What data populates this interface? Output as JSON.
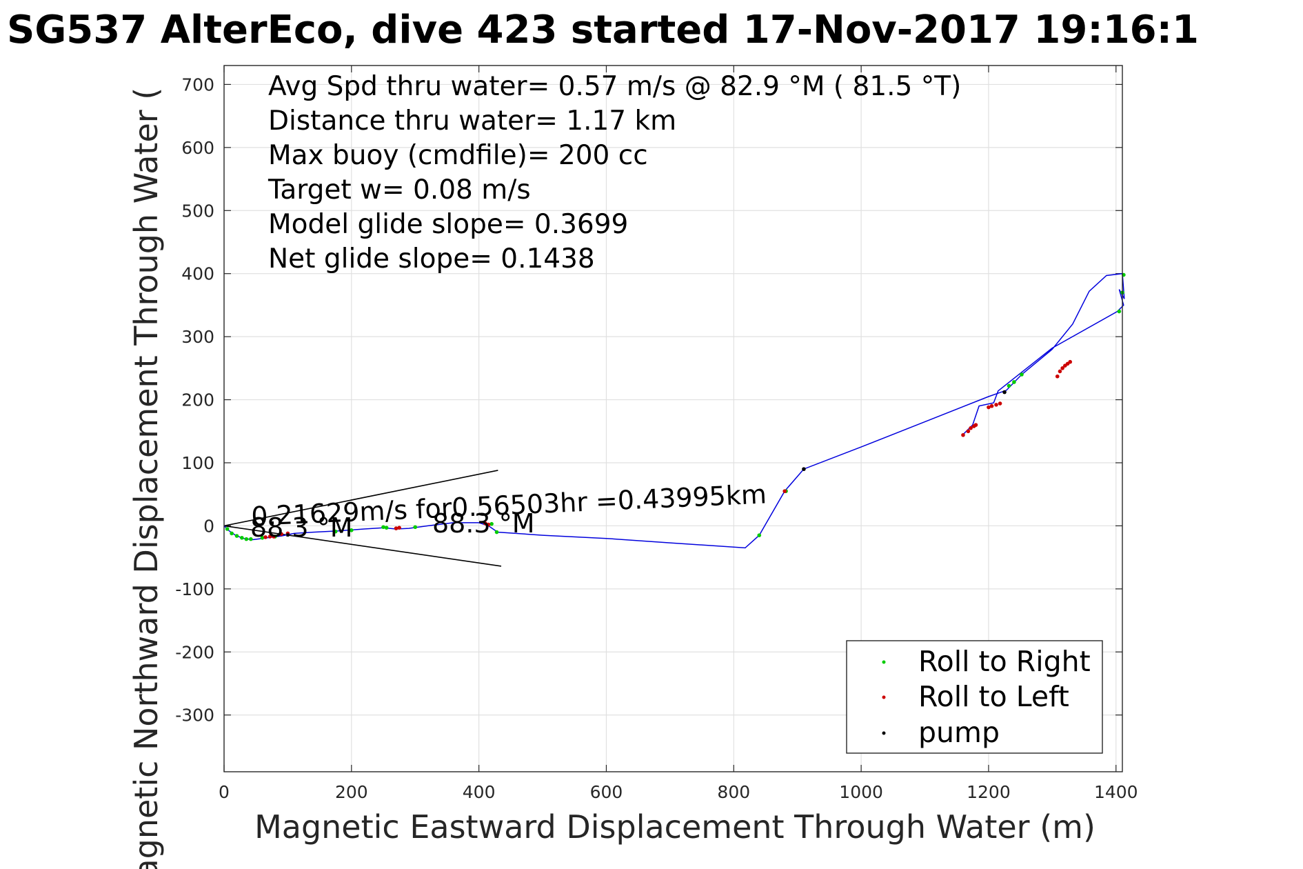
{
  "chart_data": {
    "type": "line",
    "title": "SG537 AlterEco, dive 423 started 17-Nov-2017 19:16:1",
    "xlabel": "Magnetic Eastward Displacement Through Water (m)",
    "ylabel": "Magnetic Northward Displacement Through Water (",
    "xlim": [
      0,
      1410
    ],
    "ylim": [
      -390,
      730
    ],
    "x_ticks": [
      0,
      200,
      400,
      600,
      800,
      1000,
      1200,
      1400
    ],
    "y_ticks": [
      -300,
      -200,
      -100,
      0,
      100,
      200,
      300,
      400,
      500,
      600,
      700
    ],
    "grid": true,
    "legend_position": "bottom-right",
    "info_lines": [
      "Avg Spd thru water=  0.57 m/s @  82.9 °M ( 81.5 °T)",
      "Distance thru water=  1.17 km",
      "Max buoy (cmdfile)= 200 cc",
      "Target w= 0.08 m/s",
      "Model glide slope= 0.3699",
      "Net glide slope= 0.1438"
    ],
    "annotations": {
      "current": "0.21629m/s for0.56503hr =0.43995km",
      "heading_left": "88.3 °M",
      "heading_right": "88.3 °M"
    },
    "series": [
      {
        "name": "track",
        "color": "#0000dd",
        "x": [
          0,
          8,
          18,
          30,
          45,
          60,
          75,
          90,
          110,
          140,
          180,
          220,
          250,
          270,
          290,
          320,
          360,
          400,
          415,
          425,
          430,
          500,
          600,
          700,
          818,
          840,
          880,
          910,
          1000,
          1100,
          1200,
          1228,
          1252,
          1300,
          1332,
          1358,
          1385,
          1410,
          1413,
          1405,
          1412,
          1402,
          1300,
          1215,
          1208,
          1185,
          1175,
          1165,
          1160
        ],
        "y": [
          0,
          -8,
          -15,
          -20,
          -22,
          -20,
          -18,
          -16,
          -12,
          -10,
          -8,
          -5,
          -3,
          -5,
          -4,
          0,
          5,
          5,
          0,
          -7,
          -10,
          -15,
          -20,
          -27,
          -35,
          -15,
          55,
          90,
          125,
          165,
          205,
          215,
          240,
          280,
          320,
          372,
          397,
          400,
          360,
          375,
          350,
          340,
          282,
          214,
          195,
          190,
          160,
          150,
          145
        ]
      },
      {
        "name": "Roll to Right",
        "color": "#00cc00",
        "x": [
          5,
          12,
          20,
          28,
          35,
          42,
          60,
          80,
          175,
          200,
          250,
          255,
          300,
          420,
          428,
          840,
          882,
          1232,
          1240,
          1252,
          1405,
          1410,
          1412
        ],
        "y": [
          -5,
          -12,
          -16,
          -19,
          -21,
          -21,
          -19,
          -17,
          -9,
          -7,
          -2,
          -3,
          -2,
          3,
          -10,
          -15,
          55,
          222,
          228,
          240,
          340,
          370,
          398
        ]
      },
      {
        "name": "Roll to Left",
        "color": "#cc0000",
        "x": [
          65,
          72,
          78,
          90,
          100,
          270,
          275,
          410,
          415,
          880,
          1160,
          1168,
          1172,
          1177,
          1180,
          1200,
          1205,
          1212,
          1218,
          1308,
          1312,
          1316,
          1320,
          1324,
          1328
        ],
        "y": [
          -18,
          -17,
          -17,
          -13,
          -12,
          -4,
          -3,
          4,
          2,
          55,
          144,
          150,
          155,
          158,
          160,
          188,
          190,
          192,
          194,
          237,
          245,
          250,
          254,
          257,
          260
        ]
      },
      {
        "name": "pump",
        "color": "#000000",
        "x": [
          910,
          1225
        ],
        "y": [
          90,
          212
        ]
      }
    ],
    "current_lines": [
      {
        "x": [
          0,
          430
        ],
        "y": [
          0,
          88
        ]
      },
      {
        "x": [
          0,
          435
        ],
        "y": [
          0,
          -64
        ]
      }
    ]
  }
}
